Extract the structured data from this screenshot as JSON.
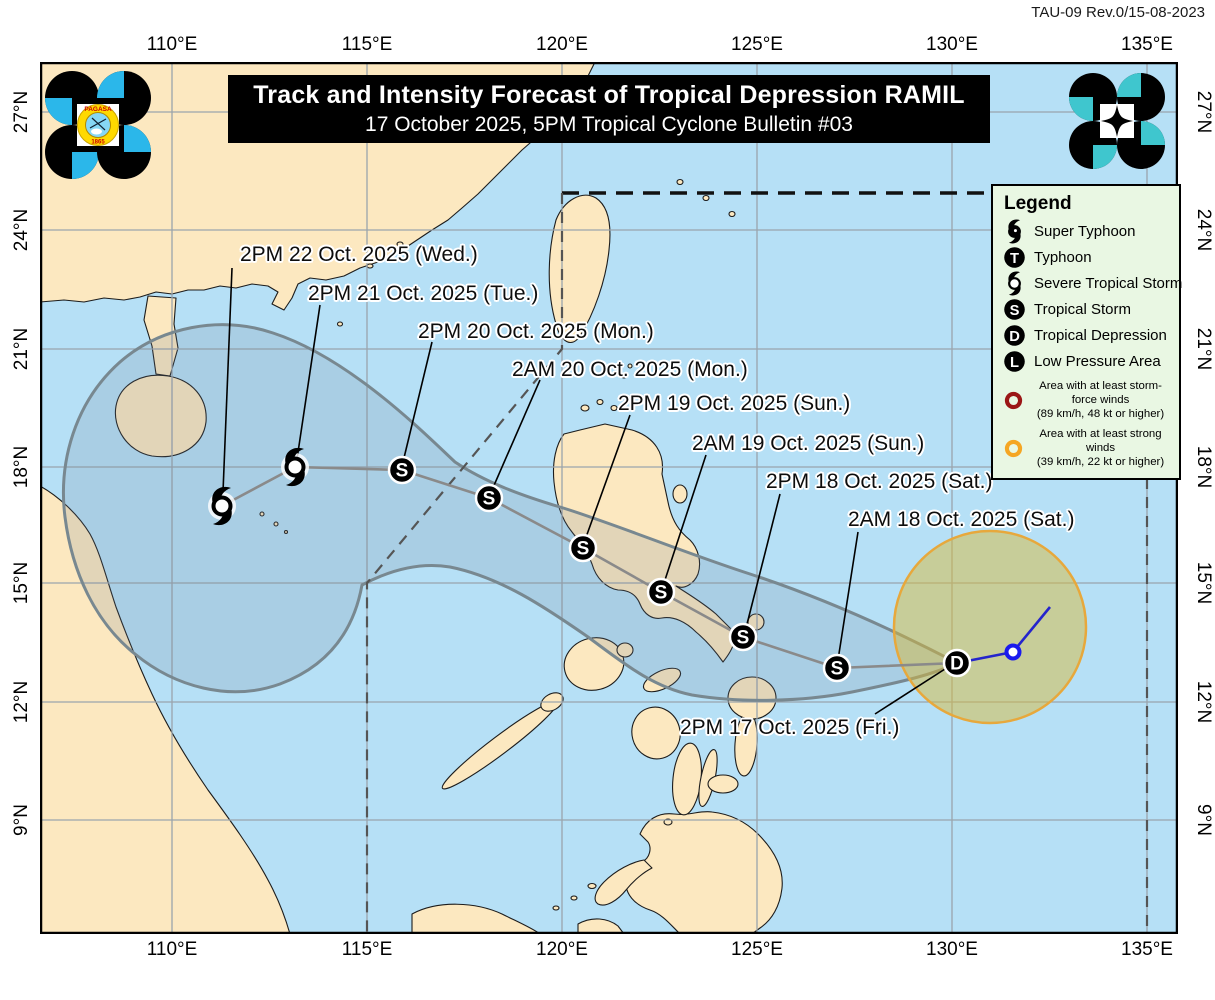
{
  "doc_ref": "TAU-09 Rev.0/15-08-2023",
  "header": {
    "title": "Track and Intensity Forecast of Tropical Depression RAMIL",
    "subtitle": "17 October 2025, 5PM Tropical Cyclone Bulletin #03"
  },
  "axes": {
    "longitude_labels": [
      "110°E",
      "115°E",
      "120°E",
      "125°E",
      "130°E",
      "135°E"
    ],
    "latitude_labels": [
      "27°N",
      "24°N",
      "21°N",
      "18°N",
      "15°N",
      "12°N",
      "9°N"
    ]
  },
  "legend": {
    "title": "Legend",
    "items": [
      {
        "symbol": "super-typhoon",
        "label": "Super Typhoon"
      },
      {
        "symbol": "typhoon",
        "letter": "T",
        "label": "Typhoon"
      },
      {
        "symbol": "severe-tropical-storm",
        "label": "Severe Tropical Storm"
      },
      {
        "symbol": "tropical-storm",
        "letter": "S",
        "label": "Tropical Storm"
      },
      {
        "symbol": "tropical-depression",
        "letter": "D",
        "label": "Tropical Depression"
      },
      {
        "symbol": "low-pressure-area",
        "letter": "L",
        "label": "Low Pressure Area"
      }
    ],
    "wind_areas": [
      {
        "label": "Area with at least storm-force winds",
        "detail": "(89 km/h, 48 kt or higher)",
        "ring_color": "#9b1616"
      },
      {
        "label": "Area with at least strong winds",
        "detail": "(39 km/h, 22 kt or higher)",
        "ring_color": "#f5a623"
      }
    ]
  },
  "track": {
    "storm_name": "RAMIL",
    "points": [
      {
        "time": "2PM 17 Oct. 2025 (Fri.)",
        "symbol": "D",
        "intensity": "Tropical Depression"
      },
      {
        "time": "2AM 18 Oct. 2025 (Sat.)",
        "symbol": "S",
        "intensity": "Tropical Storm"
      },
      {
        "time": "2PM 18 Oct. 2025 (Sat.)",
        "symbol": "S",
        "intensity": "Tropical Storm"
      },
      {
        "time": "2AM 19 Oct. 2025 (Sun.)",
        "symbol": "S",
        "intensity": "Tropical Storm"
      },
      {
        "time": "2PM 19 Oct. 2025 (Sun.)",
        "symbol": "S",
        "intensity": "Tropical Storm"
      },
      {
        "time": "2AM 20 Oct. 2025 (Mon.)",
        "symbol": "S",
        "intensity": "Tropical Storm"
      },
      {
        "time": "2PM 20 Oct. 2025 (Mon.)",
        "symbol": "S",
        "intensity": "Tropical Storm"
      },
      {
        "time": "2PM 21 Oct. 2025 (Tue.)",
        "symbol": "STS",
        "intensity": "Severe Tropical Storm"
      },
      {
        "time": "2PM 22 Oct. 2025 (Wed.)",
        "symbol": "STS",
        "intensity": "Severe Tropical Storm"
      }
    ]
  },
  "colors": {
    "ocean": "#b6e0f6",
    "land": "#fce8c0",
    "cone_outline": "#788890",
    "strong_wind_ring": "#e7a83c",
    "past_track": "#2424cc",
    "forecast_track": "#8a8a8a",
    "legend_bg": "#e9f7e3",
    "banner_bg": "#000000"
  }
}
